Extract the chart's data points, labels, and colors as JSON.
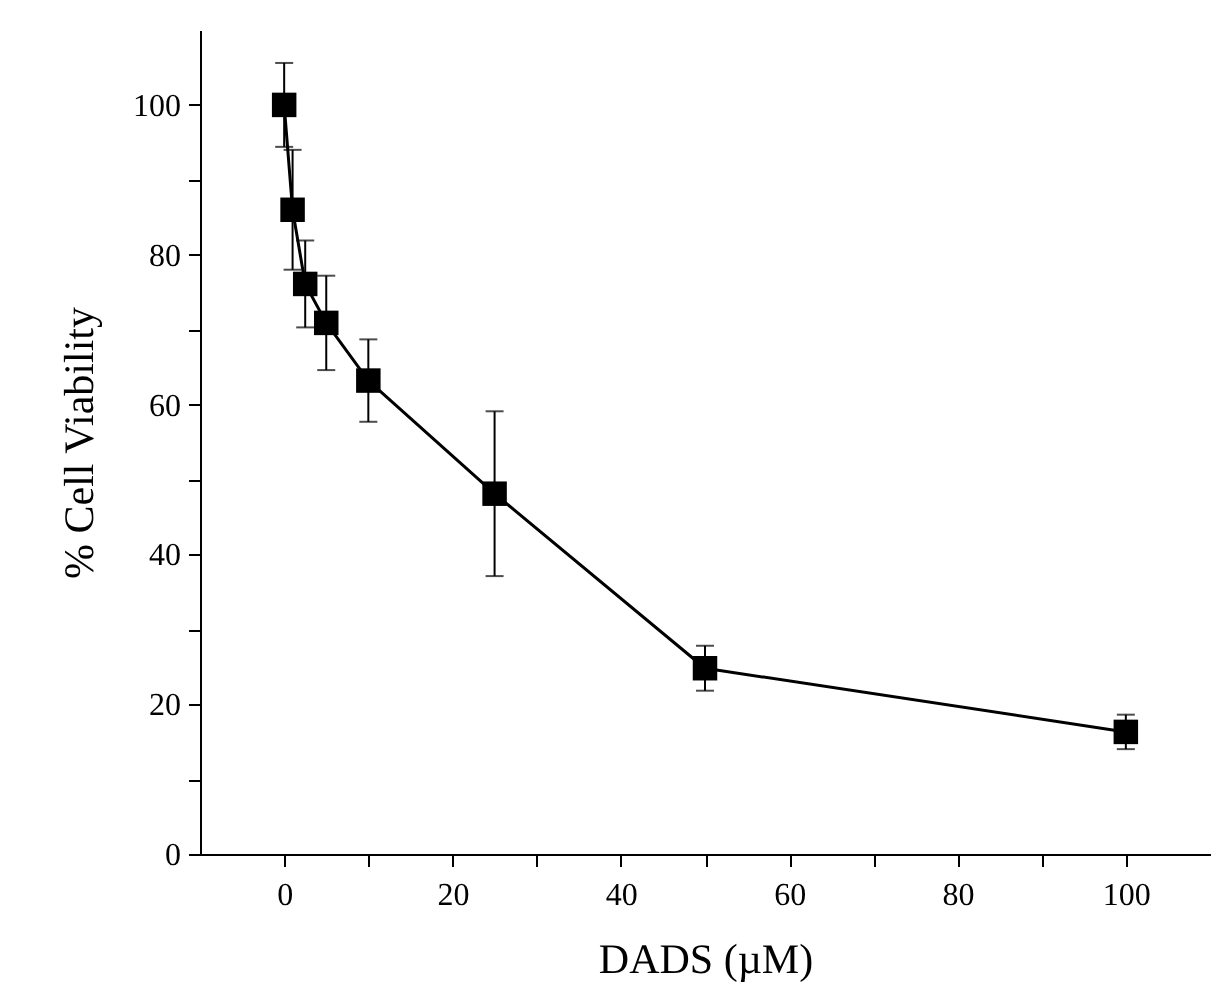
{
  "chart_data": {
    "type": "line",
    "xlabel": "DADS (µM)",
    "ylabel": "% Cell Viability",
    "x": [
      0,
      1,
      2.5,
      5,
      10,
      25,
      50,
      100
    ],
    "series": [
      {
        "color": "#000000",
        "values": [
          100,
          86,
          76.1,
          70.9,
          63.2,
          48.1,
          24.8,
          16.3
        ],
        "errors": [
          5.6,
          8,
          5.8,
          6.3,
          5.5,
          11,
          3,
          2.3
        ]
      }
    ],
    "marker": "square",
    "line_style": "solid",
    "xlim": [
      -10,
      110
    ],
    "ylim": [
      0,
      110
    ],
    "xticks": [
      0,
      {
        "value": 10,
        "label": null
      },
      20,
      {
        "value": 30,
        "label": null
      },
      40,
      {
        "value": 50,
        "label": null
      },
      60,
      {
        "value": 70,
        "label": null
      },
      80,
      {
        "value": 90,
        "label": null
      },
      100
    ],
    "yticks": [
      0,
      {
        "value": 10,
        "label": null
      },
      20,
      {
        "value": 30,
        "label": null
      },
      40,
      {
        "value": 50,
        "label": null
      },
      60,
      {
        "value": 70,
        "label": null
      },
      80,
      {
        "value": 90,
        "label": null
      },
      100
    ]
  }
}
